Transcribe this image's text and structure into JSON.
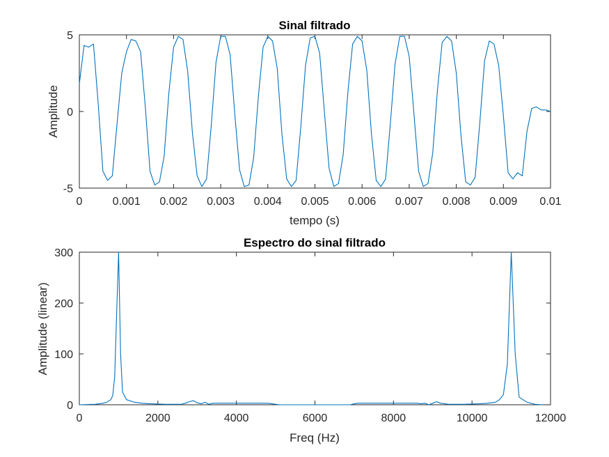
{
  "colors": {
    "series": "#0072BD",
    "axes": "#262626",
    "background": "#ffffff"
  },
  "chart_data": [
    {
      "type": "line",
      "title": "Sinal filtrado",
      "xlabel": "tempo (s)",
      "ylabel": "Amplitude",
      "xlim": [
        0,
        0.01
      ],
      "ylim": [
        -5,
        5
      ],
      "xticks": [
        0,
        0.001,
        0.002,
        0.003,
        0.004,
        0.005,
        0.006,
        0.007,
        0.008,
        0.009,
        0.01
      ],
      "xtick_labels": [
        "0",
        "0.001",
        "0.002",
        "0.003",
        "0.004",
        "0.005",
        "0.006",
        "0.007",
        "0.008",
        "0.009",
        "0.01"
      ],
      "yticks": [
        -5,
        0,
        5
      ],
      "ytick_labels": [
        "-5",
        "0",
        "5"
      ],
      "grid": false,
      "series": [
        {
          "x": [
            0,
            0.0001,
            0.0002,
            0.0003,
            0.0004,
            0.0005,
            0.0006,
            0.0007,
            0.0008,
            0.0009,
            0.001,
            0.0011,
            0.0012,
            0.0013,
            0.0014,
            0.0015,
            0.0016,
            0.0017,
            0.0018,
            0.0019,
            0.002,
            0.0021,
            0.0022,
            0.0023,
            0.0024,
            0.0025,
            0.0026,
            0.0027,
            0.0028,
            0.0029,
            0.003,
            0.0031,
            0.0032,
            0.0033,
            0.0034,
            0.0035,
            0.0036,
            0.0037,
            0.0038,
            0.0039,
            0.004,
            0.0041,
            0.0042,
            0.0043,
            0.0044,
            0.0045,
            0.0046,
            0.0047,
            0.0048,
            0.0049,
            0.005,
            0.0051,
            0.0052,
            0.0053,
            0.0054,
            0.0055,
            0.0056,
            0.0057,
            0.0058,
            0.0059,
            0.006,
            0.0061,
            0.0062,
            0.0063,
            0.0064,
            0.0065,
            0.0066,
            0.0067,
            0.0068,
            0.0069,
            0.007,
            0.0071,
            0.0072,
            0.0073,
            0.0074,
            0.0075,
            0.0076,
            0.0077,
            0.0078,
            0.0079,
            0.008,
            0.0081,
            0.0082,
            0.0083,
            0.0084,
            0.0085,
            0.0086,
            0.0087,
            0.0088,
            0.0089,
            0.009,
            0.0091,
            0.0092,
            0.0093,
            0.0094,
            0.0095,
            0.0096,
            0.0097,
            0.0098,
            0.0099,
            0.01
          ],
          "y": [
            1.8,
            4.3,
            4.2,
            4.4,
            0.5,
            -3.9,
            -4.5,
            -4.2,
            -0.8,
            2.5,
            3.9,
            4.7,
            4.6,
            3.9,
            0.3,
            -3.9,
            -4.8,
            -4.6,
            -2.9,
            1.2,
            4.2,
            4.9,
            4.7,
            2.6,
            -1.4,
            -4.2,
            -4.9,
            -4.4,
            -0.9,
            3.2,
            4.9,
            4.9,
            3.7,
            -0.2,
            -3.8,
            -4.9,
            -4.8,
            -3.0,
            1.0,
            4.2,
            4.9,
            4.6,
            2.8,
            -1.5,
            -4.4,
            -4.9,
            -4.5,
            -1.0,
            3.0,
            4.8,
            4.9,
            3.8,
            0.0,
            -3.7,
            -4.9,
            -4.7,
            -2.8,
            1.3,
            4.4,
            4.9,
            4.6,
            2.7,
            -1.5,
            -4.5,
            -4.9,
            -4.4,
            -0.8,
            3.1,
            4.9,
            4.9,
            3.6,
            -0.1,
            -3.9,
            -4.9,
            -4.7,
            -2.7,
            1.4,
            4.5,
            4.9,
            4.6,
            2.5,
            -1.6,
            -4.6,
            -4.8,
            -4.3,
            -0.7,
            3.3,
            4.6,
            4.4,
            3.0,
            -0.3,
            -4.0,
            -4.4,
            -4.0,
            -4.2,
            -1.3,
            0.2,
            0.3,
            0.1,
            0.1,
            0.0
          ]
        }
      ]
    },
    {
      "type": "line",
      "title": "Espectro do sinal filtrado",
      "xlabel": "Freq (Hz)",
      "ylabel": "Amplitude (linear)",
      "xlim": [
        0,
        12000
      ],
      "ylim": [
        0,
        300
      ],
      "xticks": [
        0,
        2000,
        4000,
        6000,
        8000,
        10000,
        12000
      ],
      "xtick_labels": [
        "0",
        "2000",
        "4000",
        "6000",
        "8000",
        "10000",
        "12000"
      ],
      "yticks": [
        0,
        100,
        200,
        300
      ],
      "ytick_labels": [
        "0",
        "100",
        "200",
        "300"
      ],
      "grid": false,
      "series": [
        {
          "x": [
            0,
            200,
            400,
            600,
            700,
            800,
            850,
            900,
            950,
            1000,
            1050,
            1100,
            1200,
            1400,
            1600,
            1800,
            2000,
            2200,
            2600,
            2700,
            2800,
            2900,
            3000,
            3100,
            3200,
            3300,
            3400,
            3600,
            4000,
            4400,
            4800,
            4900,
            5000,
            5100,
            5400,
            6000,
            6600,
            6900,
            7000,
            7100,
            7400,
            8000,
            8600,
            8700,
            8800,
            8900,
            9000,
            9100,
            9200,
            9300,
            9400,
            9800,
            10000,
            10200,
            10400,
            10600,
            10700,
            10800,
            10900,
            11000,
            11100,
            11200,
            11400,
            11600,
            11800
          ],
          "y": [
            0,
            0.5,
            1,
            3,
            5,
            10,
            18,
            55,
            180,
            300,
            100,
            25,
            10,
            5,
            3,
            2,
            1.5,
            1,
            1,
            3,
            6,
            8,
            4,
            2,
            5,
            1,
            3,
            3,
            3,
            3,
            3,
            2,
            1,
            0,
            0,
            0,
            0,
            0,
            2,
            3,
            3,
            3,
            3,
            2,
            3,
            0,
            3,
            6,
            3,
            2,
            1,
            1,
            1.5,
            2,
            3,
            5,
            10,
            20,
            80,
            300,
            100,
            15,
            5,
            1,
            0
          ]
        }
      ]
    }
  ]
}
